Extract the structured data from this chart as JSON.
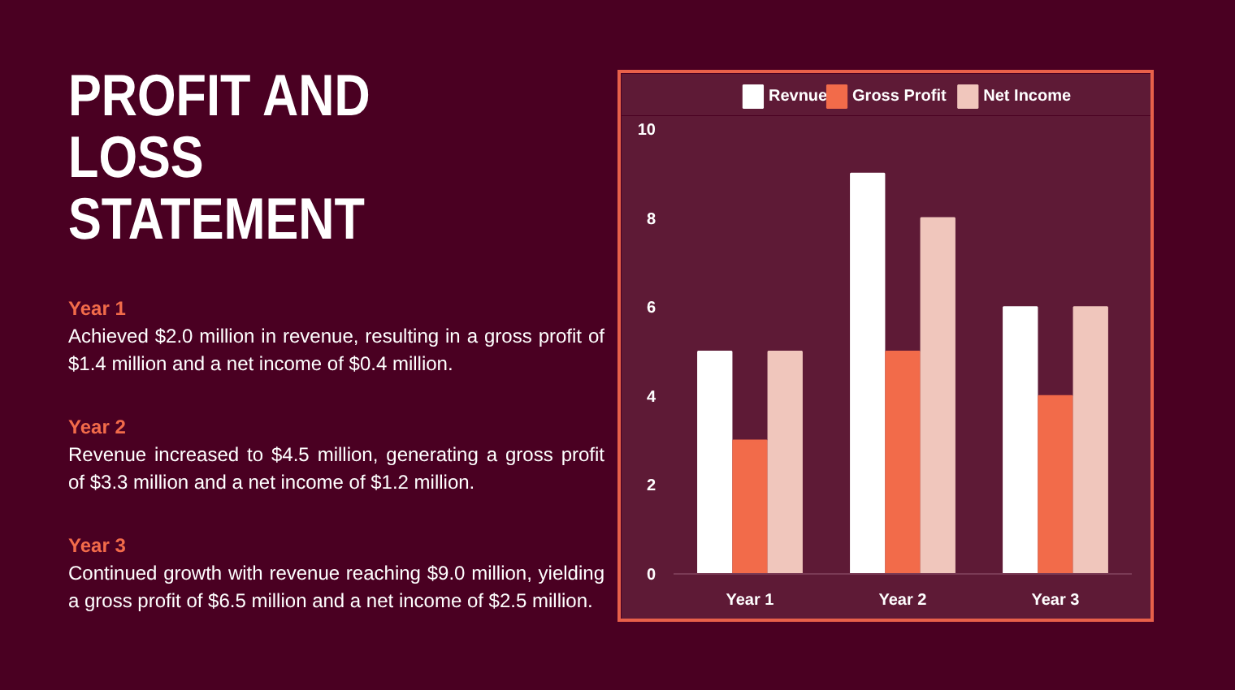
{
  "chart_data": {
    "type": "bar",
    "title": "PROFIT AND LOSS STATEMENT",
    "annotations": [
      "Year 1",
      "Achieved $2.0 million in revenue, resulting in a gross profit of $1.4 million and a net income of $0.4 million.",
      "Year 2",
      "Revenue increased to $4.5 million, generating a gross profit of $3.3 million and a net income of $1.2 million.",
      "Year 3",
      "Continued growth with revenue reaching $9.0 million, yielding a gross profit of $6.5 million and a net income of $2.5 million."
    ],
    "categories": [
      "Year 1",
      "Year 2",
      "Year 3"
    ],
    "series": [
      {
        "name": "Revnue",
        "color": "#ffffff",
        "values": [
          5,
          9,
          6
        ]
      },
      {
        "name": "Gross Profit",
        "color": "#f26b4a",
        "values": [
          3,
          5,
          4
        ]
      },
      {
        "name": "Net Income",
        "color": "#f0c6bc",
        "values": [
          5,
          8,
          6
        ]
      }
    ],
    "ylim": [
      0,
      10
    ],
    "yticks": [
      0,
      2,
      4,
      6,
      8,
      10
    ],
    "grid": false,
    "legend": "top"
  }
}
